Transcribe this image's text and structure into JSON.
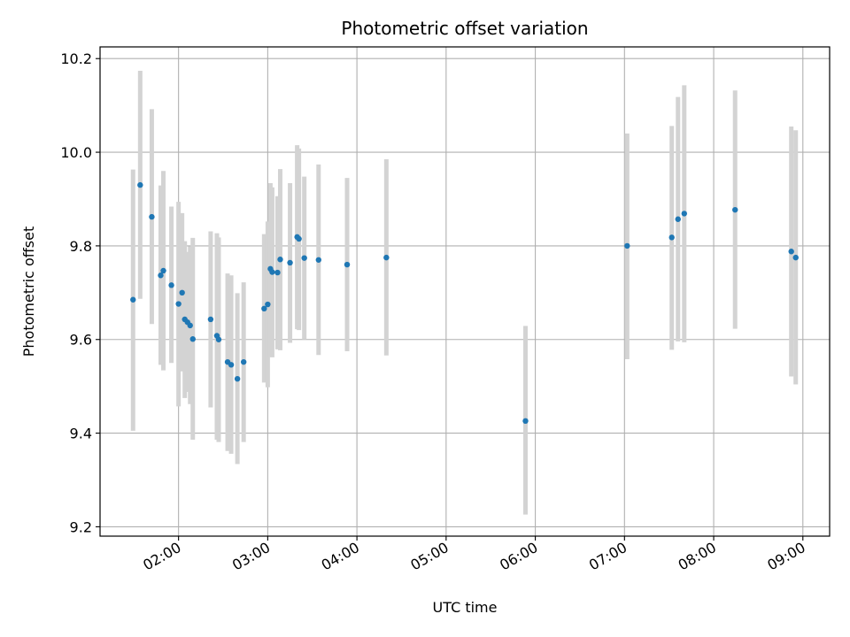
{
  "chart_data": {
    "type": "scatter",
    "title": "Photometric offset variation",
    "xlabel": "UTC time",
    "ylabel": "Photometric offset",
    "x_unit": "hours (UTC)",
    "xlim": [
      1.12,
      9.3
    ],
    "ylim": [
      9.18,
      10.225
    ],
    "x_ticks": [
      {
        "value": 2,
        "label": "02:00"
      },
      {
        "value": 3,
        "label": "03:00"
      },
      {
        "value": 4,
        "label": "04:00"
      },
      {
        "value": 5,
        "label": "05:00"
      },
      {
        "value": 6,
        "label": "06:00"
      },
      {
        "value": 7,
        "label": "07:00"
      },
      {
        "value": 8,
        "label": "08:00"
      },
      {
        "value": 9,
        "label": "09:00"
      }
    ],
    "y_ticks": [
      {
        "value": 9.2,
        "label": "9.2"
      },
      {
        "value": 9.4,
        "label": "9.4"
      },
      {
        "value": 9.6,
        "label": "9.6"
      },
      {
        "value": 9.8,
        "label": "9.8"
      },
      {
        "value": 10.0,
        "label": "10.0"
      },
      {
        "value": 10.2,
        "label": "10.2"
      }
    ],
    "grid": true,
    "legend": "none",
    "colors": {
      "point": "#1f77b4",
      "errorbar": "#d3d3d3",
      "grid": "#b0b0b0",
      "axes": "#000000"
    },
    "series": [
      {
        "points": [
          {
            "x": 1.49,
            "y": 9.685,
            "lo": 9.405,
            "hi": 9.963
          },
          {
            "x": 1.57,
            "y": 9.93,
            "lo": 9.687,
            "hi": 10.174
          },
          {
            "x": 1.7,
            "y": 9.862,
            "lo": 9.633,
            "hi": 10.092
          },
          {
            "x": 1.8,
            "y": 9.737,
            "lo": 9.546,
            "hi": 9.929
          },
          {
            "x": 1.83,
            "y": 9.747,
            "lo": 9.534,
            "hi": 9.96
          },
          {
            "x": 1.92,
            "y": 9.716,
            "lo": 9.55,
            "hi": 9.884
          },
          {
            "x": 2.0,
            "y": 9.676,
            "lo": 9.457,
            "hi": 9.894
          },
          {
            "x": 2.04,
            "y": 9.7,
            "lo": 9.532,
            "hi": 9.87
          },
          {
            "x": 2.07,
            "y": 9.643,
            "lo": 9.475,
            "hi": 9.81
          },
          {
            "x": 2.1,
            "y": 9.637,
            "lo": 9.488,
            "hi": 9.787
          },
          {
            "x": 2.13,
            "y": 9.63,
            "lo": 9.462,
            "hi": 9.799
          },
          {
            "x": 2.16,
            "y": 9.601,
            "lo": 9.386,
            "hi": 9.817
          },
          {
            "x": 2.36,
            "y": 9.643,
            "lo": 9.455,
            "hi": 9.831
          },
          {
            "x": 2.43,
            "y": 9.608,
            "lo": 9.386,
            "hi": 9.827
          },
          {
            "x": 2.45,
            "y": 9.6,
            "lo": 9.381,
            "hi": 9.818
          },
          {
            "x": 2.55,
            "y": 9.552,
            "lo": 9.362,
            "hi": 9.741
          },
          {
            "x": 2.59,
            "y": 9.546,
            "lo": 9.356,
            "hi": 9.737
          },
          {
            "x": 2.66,
            "y": 9.516,
            "lo": 9.334,
            "hi": 9.699
          },
          {
            "x": 2.73,
            "y": 9.552,
            "lo": 9.381,
            "hi": 9.722
          },
          {
            "x": 2.96,
            "y": 9.666,
            "lo": 9.508,
            "hi": 9.825
          },
          {
            "x": 3.0,
            "y": 9.675,
            "lo": 9.498,
            "hi": 9.852
          },
          {
            "x": 3.03,
            "y": 9.751,
            "lo": 9.563,
            "hi": 9.934
          },
          {
            "x": 3.05,
            "y": 9.744,
            "lo": 9.562,
            "hi": 9.925
          },
          {
            "x": 3.11,
            "y": 9.743,
            "lo": 9.579,
            "hi": 9.906
          },
          {
            "x": 3.14,
            "y": 9.771,
            "lo": 9.577,
            "hi": 9.964
          },
          {
            "x": 3.25,
            "y": 9.764,
            "lo": 9.593,
            "hi": 9.934
          },
          {
            "x": 3.33,
            "y": 9.819,
            "lo": 9.622,
            "hi": 10.015
          },
          {
            "x": 3.35,
            "y": 9.815,
            "lo": 9.62,
            "hi": 10.008
          },
          {
            "x": 3.41,
            "y": 9.774,
            "lo": 9.6,
            "hi": 9.948
          },
          {
            "x": 3.57,
            "y": 9.77,
            "lo": 9.567,
            "hi": 9.974
          },
          {
            "x": 3.89,
            "y": 9.76,
            "lo": 9.575,
            "hi": 9.945
          },
          {
            "x": 4.33,
            "y": 9.775,
            "lo": 9.566,
            "hi": 9.985
          },
          {
            "x": 5.89,
            "y": 9.426,
            "lo": 9.226,
            "hi": 9.629
          },
          {
            "x": 7.03,
            "y": 9.8,
            "lo": 9.558,
            "hi": 10.04
          },
          {
            "x": 7.53,
            "y": 9.818,
            "lo": 9.578,
            "hi": 10.056
          },
          {
            "x": 7.6,
            "y": 9.857,
            "lo": 9.596,
            "hi": 10.118
          },
          {
            "x": 7.67,
            "y": 9.869,
            "lo": 9.594,
            "hi": 10.143
          },
          {
            "x": 8.24,
            "y": 9.877,
            "lo": 9.623,
            "hi": 10.132
          },
          {
            "x": 8.87,
            "y": 9.788,
            "lo": 9.521,
            "hi": 10.055
          },
          {
            "x": 8.92,
            "y": 9.775,
            "lo": 9.504,
            "hi": 10.047
          }
        ]
      }
    ]
  }
}
